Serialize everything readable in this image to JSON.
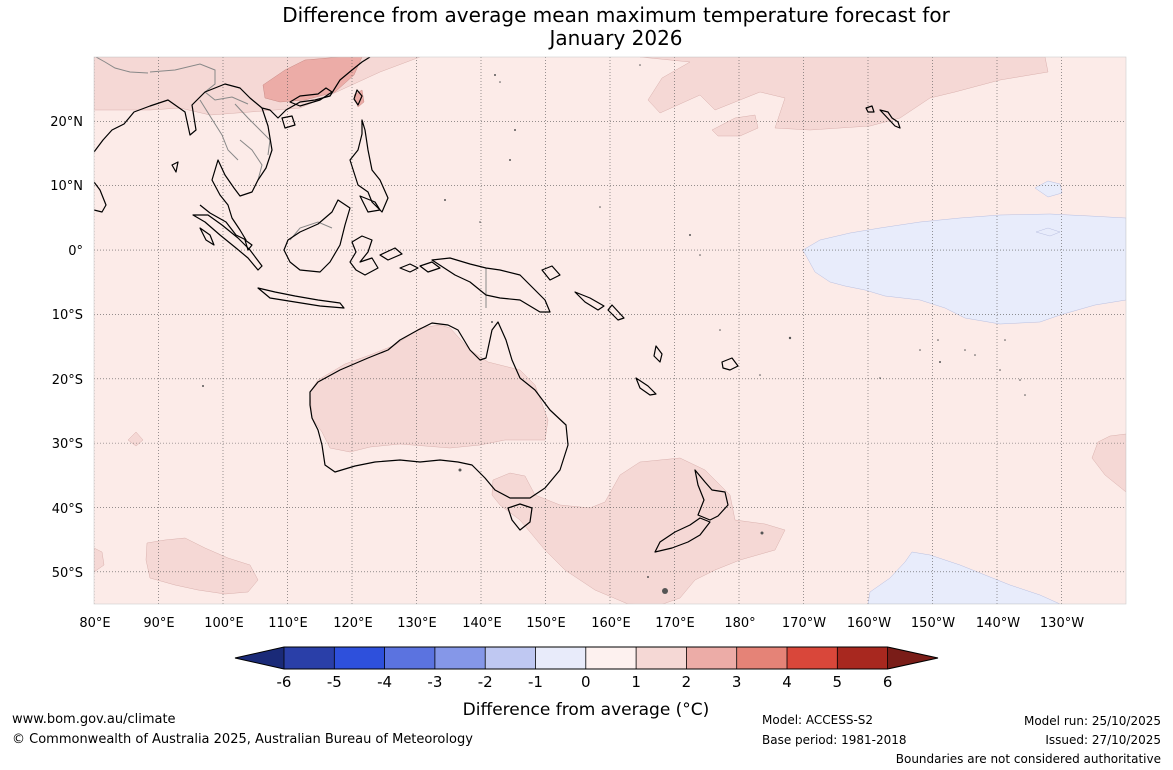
{
  "title_line1": "Difference from average mean maximum temperature forecast for",
  "title_line2": "January 2026",
  "map": {
    "extent": {
      "lon_min": 80,
      "lon_max": 240,
      "lat_min": -55,
      "lat_max": 30
    },
    "lon_ticks": [
      "80°E",
      "90°E",
      "100°E",
      "110°E",
      "120°E",
      "130°E",
      "140°E",
      "150°E",
      "160°E",
      "170°E",
      "180°",
      "170°W",
      "160°W",
      "150°W",
      "140°W",
      "130°W"
    ],
    "lat_ticks": [
      "20°N",
      "10°N",
      "0°",
      "10°S",
      "20°S",
      "30°S",
      "40°S",
      "50°S"
    ],
    "background_anomaly": "0 to 1",
    "colors": {
      "ocean_default": "#fcebe8",
      "anomaly_1_2": "#f5d8d5",
      "anomaly_2_3": "#ecaca7",
      "anomaly_neg1_0": "#e8ecfb",
      "coast": "#000000",
      "border": "#888888",
      "grid": "#555555"
    }
  },
  "colorbar": {
    "label": "Difference from average (°C)",
    "ticks": [
      "-6",
      "-5",
      "-4",
      "-3",
      "-2",
      "-1",
      "0",
      "1",
      "2",
      "3",
      "4",
      "5",
      "6"
    ],
    "colors": [
      "#1a2a78",
      "#2a3fa8",
      "#2e50dc",
      "#5b73e0",
      "#8597e8",
      "#bfc8f2",
      "#e8ebfa",
      "#fdf1ef",
      "#f5d8d5",
      "#ecaca7",
      "#e58377",
      "#d9473a",
      "#a8281f",
      "#7a1d18"
    ]
  },
  "footer": {
    "website": "www.bom.gov.au/climate",
    "copyright": "© Commonwealth of Australia 2025, Australian Bureau of Meteorology",
    "model": "Model: ACCESS-S2",
    "base_period": "Base period: 1981-2018",
    "model_run": "Model run: 25/10/2025",
    "issued": "Issued: 27/10/2025",
    "boundaries_note": "Boundaries are not considered authoritative"
  }
}
